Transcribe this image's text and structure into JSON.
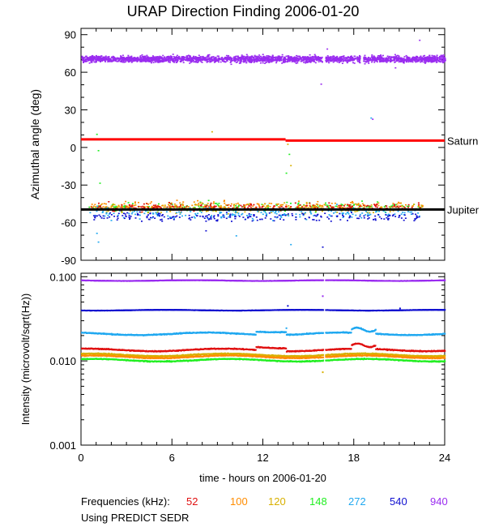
{
  "title": "URAP Direction Finding  2006-01-20",
  "xlabel": "time - hours on 2006-01-20",
  "frequencies_label": "Frequencies (kHz):",
  "source_note": "Using PREDICT SEDR",
  "colors": {
    "52": "#e01010",
    "100": "#ff8c00",
    "120": "#d8b000",
    "148": "#22ee22",
    "272": "#20a8f0",
    "540": "#1010d0",
    "940": "#9a2cf0",
    "saturn_line": "#ff0000",
    "jupiter_line": "#000000"
  },
  "chart_data": [
    {
      "type": "scatter",
      "panel": "top",
      "ylabel": "Azimuthal angle (deg)",
      "xlim": [
        0,
        24
      ],
      "ylim": [
        -90,
        95
      ],
      "xticks": [
        0,
        6,
        12,
        18,
        24
      ],
      "yticks": [
        90,
        60,
        30,
        0,
        -30,
        -60,
        -90
      ],
      "reference_lines": [
        {
          "name": "Saturn",
          "segments": [
            [
              0,
              13.5,
              6.5
            ],
            [
              13.5,
              24,
              5.5
            ]
          ]
        },
        {
          "name": "Jupiter",
          "segments": [
            [
              0,
              24,
              -49.5
            ]
          ]
        }
      ],
      "series": [
        {
          "name": "940",
          "approx_center_deg": 71,
          "spread_deg": 5,
          "x_range": [
            0,
            24
          ],
          "gaps": [
            [
              15.9,
              16.1
            ],
            [
              18.4,
              18.6
            ]
          ],
          "outliers": [
            [
              15.8,
              51
            ],
            [
              20.7,
              64
            ],
            [
              19.2,
              23
            ],
            [
              22.3,
              86
            ],
            [
              16.2,
              79
            ]
          ]
        },
        {
          "name": "148",
          "approx_center_deg": -47,
          "spread_deg": 6,
          "x_range": [
            0.5,
            22.5
          ],
          "outliers": [
            [
              1.0,
              11
            ],
            [
              1.1,
              -2
            ],
            [
              1.2,
              -28
            ],
            [
              13.5,
              -20
            ],
            [
              13.7,
              -5
            ]
          ]
        },
        {
          "name": "120",
          "approx_center_deg": -48,
          "spread_deg": 7,
          "x_range": [
            0.5,
            22.5
          ],
          "outliers": [
            [
              8.6,
              13
            ],
            [
              13.6,
              3
            ],
            [
              13.8,
              -14
            ]
          ]
        },
        {
          "name": "100",
          "approx_center_deg": -46,
          "spread_deg": 6,
          "x_range": [
            0.5,
            22.5
          ]
        },
        {
          "name": "52",
          "approx_center_deg": -47,
          "spread_deg": 5,
          "x_range": [
            0.5,
            22.5
          ]
        },
        {
          "name": "272",
          "approx_center_deg": -52,
          "spread_deg": 8,
          "x_range": [
            0.5,
            22.5
          ],
          "outliers": [
            [
              1.0,
              -68
            ],
            [
              1.1,
              -75
            ],
            [
              10.2,
              -70
            ],
            [
              13.8,
              -77
            ],
            [
              19.1,
              24
            ]
          ]
        },
        {
          "name": "540",
          "approx_center_deg": -55,
          "spread_deg": 6,
          "x_range": [
            0.5,
            22.5
          ],
          "outliers": [
            [
              15.9,
              -79
            ],
            [
              8.2,
              -66
            ]
          ]
        }
      ]
    },
    {
      "type": "line",
      "panel": "bottom",
      "ylabel": "Intensity (microvolt/sqrt(Hz))",
      "xlabel": "time - hours on 2006-01-20",
      "xlim": [
        0,
        24
      ],
      "ylim": [
        0.001,
        0.11
      ],
      "yscale": "log",
      "xticks": [
        0,
        6,
        12,
        18,
        24
      ],
      "yticks": [
        0.001,
        0.01,
        0.1
      ],
      "ytick_labels": [
        "0.001",
        "0.010",
        "0.100"
      ],
      "xtick_labels": [
        "0",
        "6",
        "12",
        "18",
        "24"
      ],
      "series": [
        {
          "name": "940",
          "level": 0.09
        },
        {
          "name": "540",
          "level": 0.04
        },
        {
          "name": "272",
          "level": 0.021
        },
        {
          "name": "52",
          "level": 0.0135
        },
        {
          "name": "120",
          "level": 0.0118
        },
        {
          "name": "100",
          "level": 0.0112
        },
        {
          "name": "148",
          "level": 0.0102
        }
      ]
    }
  ],
  "right_labels": [
    "Saturn",
    "Jupiter"
  ],
  "legend": [
    "52",
    "100",
    "120",
    "148",
    "272",
    "540",
    "940"
  ]
}
